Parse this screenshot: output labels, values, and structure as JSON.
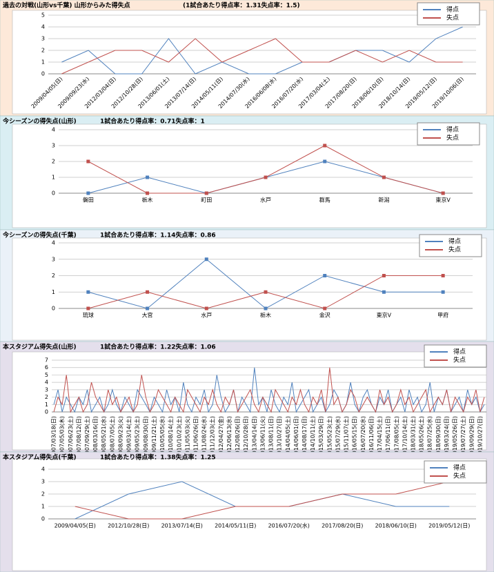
{
  "chart_data": [
    {
      "type": "line",
      "title": "過去の対戦(山形vs千葉) 山形からみた得失点",
      "subtitle": "(1試合あたり得点率：1.31失点率：1.5)",
      "categories": [
        "2009/04/05(日)",
        "2009/09/23(水)",
        "2012/03/04(日)",
        "2012/10/28(日)",
        "2013/06/01(土)",
        "2013/07/14(日)",
        "2014/05/11(日)",
        "2014/07/30(水)",
        "2016/06/08(水)",
        "2016/07/20(水)",
        "2017/03/04(土)",
        "2017/08/20(日)",
        "2018/06/10(日)",
        "2018/10/14(日)",
        "2019/05/12(日)",
        "2019/10/06(日)"
      ],
      "series": [
        {
          "name": "得点",
          "color": "#4f81bd",
          "values": [
            1,
            2,
            0,
            0,
            3,
            0,
            1,
            0,
            0,
            1,
            1,
            2,
            2,
            1,
            3,
            4
          ]
        },
        {
          "name": "失点",
          "color": "#c0504d",
          "values": [
            0,
            1,
            2,
            2,
            1,
            3,
            1,
            2,
            3,
            1,
            1,
            2,
            1,
            2,
            1,
            1
          ]
        }
      ],
      "ylim": [
        0,
        5
      ],
      "yticks": [
        0,
        1,
        2,
        3,
        4,
        5
      ],
      "grid": true,
      "markers": false,
      "legend": "top-right"
    },
    {
      "type": "line",
      "title": "今シーズンの得失点(山形)",
      "subtitle": "1試合あたり得点率：0.71失点率：1",
      "categories": [
        "磐田",
        "栃木",
        "町田",
        "水戸",
        "群馬",
        "新潟",
        "東京V"
      ],
      "series": [
        {
          "name": "得点",
          "color": "#4f81bd",
          "values": [
            0,
            1,
            0,
            1,
            2,
            1,
            0
          ]
        },
        {
          "name": "失点",
          "color": "#c0504d",
          "values": [
            2,
            0,
            0,
            1,
            3,
            1,
            0
          ]
        }
      ],
      "ylim": [
        0,
        4
      ],
      "yticks": [
        0,
        1,
        2,
        3,
        4
      ],
      "grid": true,
      "markers": true,
      "legend": "top-right"
    },
    {
      "type": "line",
      "title": "今シーズンの得失点(千葉)",
      "subtitle": "1試合あたり得点率：1.14失点率：0.86",
      "categories": [
        "琉球",
        "大宮",
        "水戸",
        "栃木",
        "金沢",
        "東京V",
        "甲府"
      ],
      "series": [
        {
          "name": "得点",
          "color": "#4f81bd",
          "values": [
            1,
            0,
            3,
            0,
            2,
            1,
            1
          ]
        },
        {
          "name": "失点",
          "color": "#c0504d",
          "values": [
            0,
            1,
            0,
            1,
            0,
            2,
            2
          ]
        }
      ],
      "ylim": [
        0,
        4
      ],
      "yticks": [
        0,
        1,
        2,
        3,
        4
      ],
      "grid": true,
      "markers": true,
      "legend": "top-right"
    },
    {
      "type": "line",
      "title": "本スタジアム得失点(山形)",
      "subtitle": "1試合あたり得点率：1.22失点率：1.06",
      "categories": [
        "2007/03/18(日)",
        null,
        "2007/05/03(木)",
        null,
        "2007/06/23(土)",
        null,
        "2007/08/12(日)",
        null,
        "2007/09/29(土)",
        null,
        "2008/03/16(日)",
        null,
        "2008/05/21(水)",
        null,
        "2008/07/05(土)",
        null,
        "2008/09/23(火)",
        null,
        "2009/03/14(土)",
        null,
        "2009/05/23(土)",
        null,
        "2009/08/30(日)",
        null,
        "2009/11/21(土)",
        null,
        "2010/05/05(水)",
        null,
        "2010/08/14(土)",
        null,
        "2010/10/23(土)",
        null,
        "2011/05/03(火)",
        null,
        "2011/06/26(日)",
        null,
        "2011/08/24(水)",
        null,
        "2011/12/03(土)",
        null,
        "2012/04/27(金)",
        null,
        "2012/06/13(水)",
        null,
        "2012/08/26(日)",
        null,
        "2012/10/28(日)",
        null,
        "2013/04/14(日)",
        null,
        "2013/06/11(火)",
        null,
        "2013/08/11(日)",
        null,
        "2013/10/27(日)",
        null,
        "2014/04/05(土)",
        null,
        "2014/06/01(日)",
        null,
        "2014/08/17(日)",
        null,
        "2014/10/11(土)",
        null,
        "2015/03/29(日)",
        null,
        "2015/05/23(土)",
        null,
        "2015/07/29(水)",
        null,
        "2015/11/07(土)",
        null,
        "2016/05/15(日)",
        null,
        "2016/07/20(水)",
        null,
        "2016/11/06(日)",
        null,
        "2017/04/15(土)",
        null,
        "2017/06/11(日)",
        null,
        "2017/08/05(土)",
        null,
        "2017/10/14(土)",
        null,
        "2018/03/31(土)",
        null,
        "2018/05/26(土)",
        null,
        "2018/07/25(水)",
        null,
        "2018/09/30(日)",
        null,
        "2019/03/24(日)",
        null,
        "2019/05/26(日)",
        null,
        "2019/07/27(土)",
        null,
        "2019/09/29(日)",
        null,
        "2019/10/27(日)",
        null
      ],
      "series": [
        {
          "name": "得点",
          "color": "#4f81bd",
          "values": [
            1,
            3,
            0,
            2,
            1,
            0,
            2,
            1,
            3,
            0,
            1,
            2,
            0,
            1,
            3,
            1,
            0,
            2,
            1,
            0,
            3,
            2,
            1,
            0,
            2,
            1,
            0,
            3,
            1,
            2,
            0,
            4,
            1,
            0,
            2,
            1,
            3,
            0,
            1,
            5,
            2,
            0,
            1,
            3,
            0,
            2,
            1,
            0,
            6,
            1,
            2,
            0,
            3,
            1,
            0,
            2,
            1,
            4,
            0,
            1,
            2,
            3,
            0,
            1,
            2,
            0,
            1,
            3,
            2,
            0,
            1,
            4,
            1,
            0,
            2,
            3,
            1,
            0,
            2,
            1,
            3,
            0,
            1,
            2,
            0,
            3,
            1,
            2,
            0,
            1,
            4,
            0,
            2,
            1,
            3,
            0,
            1,
            2,
            0,
            3,
            1,
            2,
            0,
            1
          ]
        },
        {
          "name": "失点",
          "color": "#c0504d",
          "values": [
            0,
            2,
            1,
            5,
            0,
            1,
            2,
            0,
            1,
            4,
            2,
            1,
            0,
            3,
            1,
            2,
            0,
            1,
            2,
            0,
            1,
            5,
            2,
            0,
            1,
            3,
            2,
            1,
            0,
            2,
            1,
            0,
            3,
            2,
            1,
            0,
            2,
            1,
            3,
            1,
            0,
            2,
            1,
            3,
            0,
            1,
            2,
            3,
            1,
            0,
            2,
            1,
            0,
            3,
            2,
            1,
            0,
            2,
            1,
            3,
            1,
            0,
            2,
            1,
            3,
            0,
            6,
            1,
            2,
            0,
            1,
            3,
            2,
            0,
            1,
            2,
            1,
            0,
            3,
            1,
            2,
            0,
            1,
            3,
            1,
            2,
            0,
            1,
            2,
            3,
            0,
            1,
            2,
            1,
            3,
            0,
            2,
            1,
            0,
            2,
            1,
            3,
            0,
            2
          ]
        }
      ],
      "ylim": [
        0,
        7
      ],
      "yticks": [
        0,
        1,
        2,
        3,
        4,
        5,
        6,
        7
      ],
      "grid": true,
      "markers": false,
      "legend": "top-right"
    },
    {
      "type": "line",
      "title": "本スタジアム得失点(千葉)",
      "subtitle": "1試合あたり得点率：1.38失点率：1.25",
      "categories": [
        "2009/04/05(日)",
        "2012/10/28(日)",
        "2013/07/14(日)",
        "2014/05/11(日)",
        "2016/07/20(水)",
        "2017/08/20(日)",
        "2018/06/10(日)",
        "2019/05/12(日)"
      ],
      "series": [
        {
          "name": "得点",
          "color": "#4f81bd",
          "values": [
            0,
            2,
            3,
            1,
            1,
            2,
            1,
            1
          ]
        },
        {
          "name": "失点",
          "color": "#c0504d",
          "values": [
            1,
            0,
            0,
            1,
            1,
            2,
            2,
            3
          ]
        }
      ],
      "ylim": [
        0,
        4
      ],
      "yticks": [
        0,
        1,
        2,
        3,
        4
      ],
      "grid": true,
      "markers": false,
      "legend": "top-right"
    }
  ]
}
